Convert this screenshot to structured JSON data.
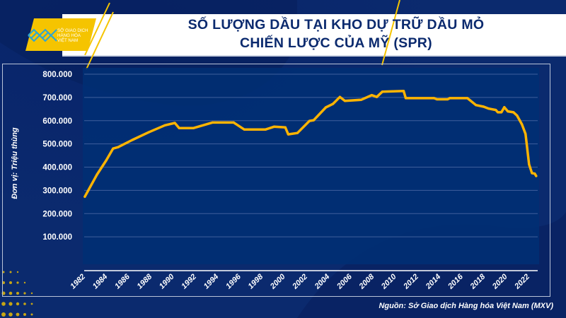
{
  "header": {
    "title_line1": "SỐ LƯỢNG DẦU TẠI KHO DỰ TRỮ DẦU MỎ",
    "title_line2": "CHIẾN LƯỢC CỦA MỸ (SPR)",
    "logo_text": [
      "SỞ GIAO DỊCH",
      "HÀNG HÓA",
      "VIỆT NAM"
    ]
  },
  "source": "Nguồn: Sở Giao dịch Hàng hóa Việt Nam (MXV)",
  "colors": {
    "background": "#0b2a6e",
    "plot": "#002f74",
    "line": "#ffb400",
    "accent": "#f5c400"
  },
  "chart_data": {
    "type": "line",
    "title": "SỐ LƯỢNG DẦU TẠI KHO DỰ TRỮ DẦU MỎ CHIẾN LƯỢC CỦA MỸ (SPR)",
    "ylabel": "Đơn vị: Triệu thùng",
    "xlabel": "",
    "ylim": [
      0,
      800
    ],
    "xlim": [
      1982,
      2022.7
    ],
    "grid": true,
    "y_ticks": [
      100,
      200,
      300,
      400,
      500,
      600,
      700,
      800
    ],
    "y_tick_labels": [
      "100.000",
      "200.000",
      "300.000",
      "400.000",
      "500.000",
      "600.000",
      "700.000",
      "800.000"
    ],
    "x_ticks": [
      1982,
      1984,
      1986,
      1988,
      1990,
      1992,
      1994,
      1996,
      1998,
      2000,
      2002,
      2004,
      2006,
      2008,
      2010,
      2012,
      2014,
      2016,
      2018,
      2020,
      2022
    ],
    "x_tick_labels": [
      "1982",
      "1984",
      "1986",
      "1988",
      "1990",
      "1992",
      "1994",
      "1996",
      "1998",
      "2000",
      "2002",
      "2004",
      "2006",
      "2008",
      "2010",
      "2012",
      "2014",
      "2016",
      "2018",
      "2020",
      "2022"
    ],
    "series": [
      {
        "name": "SPR",
        "x": [
          1982.06,
          1983.15,
          1983.98,
          1984.6,
          1985.06,
          1986.34,
          1987.8,
          1989.27,
          1990.16,
          1990.55,
          1991.82,
          1993.54,
          1995.46,
          1996.41,
          1998.33,
          1999.09,
          2000.11,
          2000.37,
          2001.2,
          2002.28,
          2002.66,
          2003.75,
          2004.39,
          2005.02,
          2005.47,
          2006.94,
          2007.89,
          2008.34,
          2008.85,
          2010.76,
          2010.95,
          2013.5,
          2013.76,
          2014.72,
          2014.91,
          2016.5,
          2017.27,
          2017.97,
          2018.42,
          2019.05,
          2019.24,
          2019.56,
          2019.82,
          2020.14,
          2020.65,
          2020.97,
          2021.41,
          2021.73,
          2022.05,
          2022.31,
          2022.56,
          2022.69
        ],
        "values": [
          273,
          368,
          429,
          480,
          486,
          517,
          550,
          580,
          590,
          568,
          568,
          592,
          592,
          562,
          562,
          574,
          571,
          541,
          547,
          599,
          602,
          657,
          672,
          702,
          685,
          690,
          710,
          702,
          725,
          728,
          697,
          697,
          692,
          692,
          697,
          697,
          667,
          660,
          652,
          646,
          636,
          636,
          658,
          640,
          636,
          622,
          584,
          543,
          412,
          374,
          372,
          362
        ]
      }
    ]
  }
}
